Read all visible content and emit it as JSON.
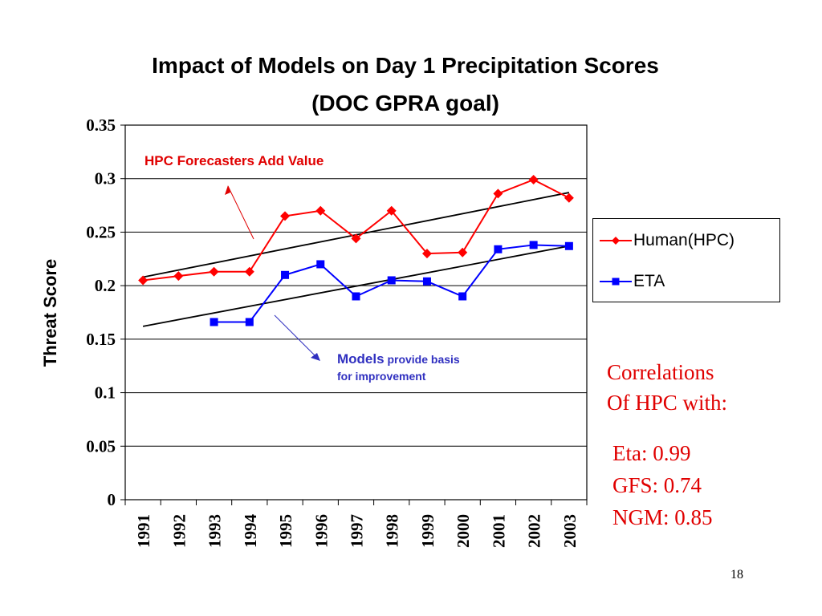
{
  "slide": {
    "title_line1": "Impact of Models on Day 1 Precipitation Scores",
    "title_line2": "(DOC GPRA goal)",
    "page_number": "18"
  },
  "annotations": {
    "hpc": "HPC Forecasters Add Value",
    "models_bold": "Models",
    "models_rest_line1": " provide basis",
    "models_line2": "for improvement"
  },
  "correlations": {
    "heading_line1": "Correlations",
    "heading_line2": "Of HPC with:",
    "eta": "Eta: 0.99",
    "gfs": "GFS: 0.74",
    "ngm": "NGM: 0.85"
  },
  "colors": {
    "human": "#ff0000",
    "eta": "#0000ff",
    "annotation_red": "#e00000",
    "annotation_blue": "#3030c0"
  },
  "chart_data": {
    "type": "line",
    "ylabel": "Threat Score",
    "xlabel": "",
    "ylim": [
      0,
      0.35
    ],
    "yticks": [
      "0",
      "0.05",
      "0.1",
      "0.15",
      "0.2",
      "0.25",
      "0.3",
      "0.35"
    ],
    "yticks_values": [
      0,
      0.05,
      0.1,
      0.15,
      0.2,
      0.25,
      0.3,
      0.35
    ],
    "categories": [
      "1991",
      "1992",
      "1993",
      "1994",
      "1995",
      "1996",
      "1997",
      "1998",
      "1999",
      "2000",
      "2001",
      "2002",
      "2003"
    ],
    "grid": "horizontal",
    "legend_position": "right",
    "series": [
      {
        "name": "Human(HPC)",
        "marker": "diamond",
        "color": "#ff0000",
        "values": [
          0.205,
          0.209,
          0.213,
          0.213,
          0.265,
          0.27,
          0.244,
          0.27,
          0.23,
          0.231,
          0.286,
          0.299,
          0.282
        ]
      },
      {
        "name": "ETA",
        "marker": "square",
        "color": "#0000ff",
        "values": [
          null,
          null,
          0.166,
          0.166,
          0.21,
          0.22,
          0.19,
          0.205,
          0.204,
          0.19,
          0.234,
          0.238,
          0.237
        ]
      }
    ],
    "trendlines": [
      {
        "series": "Human(HPC)",
        "start": [
          1991,
          0.208
        ],
        "end": [
          2003,
          0.287
        ]
      },
      {
        "series": "ETA",
        "start": [
          1991,
          0.162
        ],
        "end": [
          2003,
          0.237
        ]
      }
    ]
  }
}
